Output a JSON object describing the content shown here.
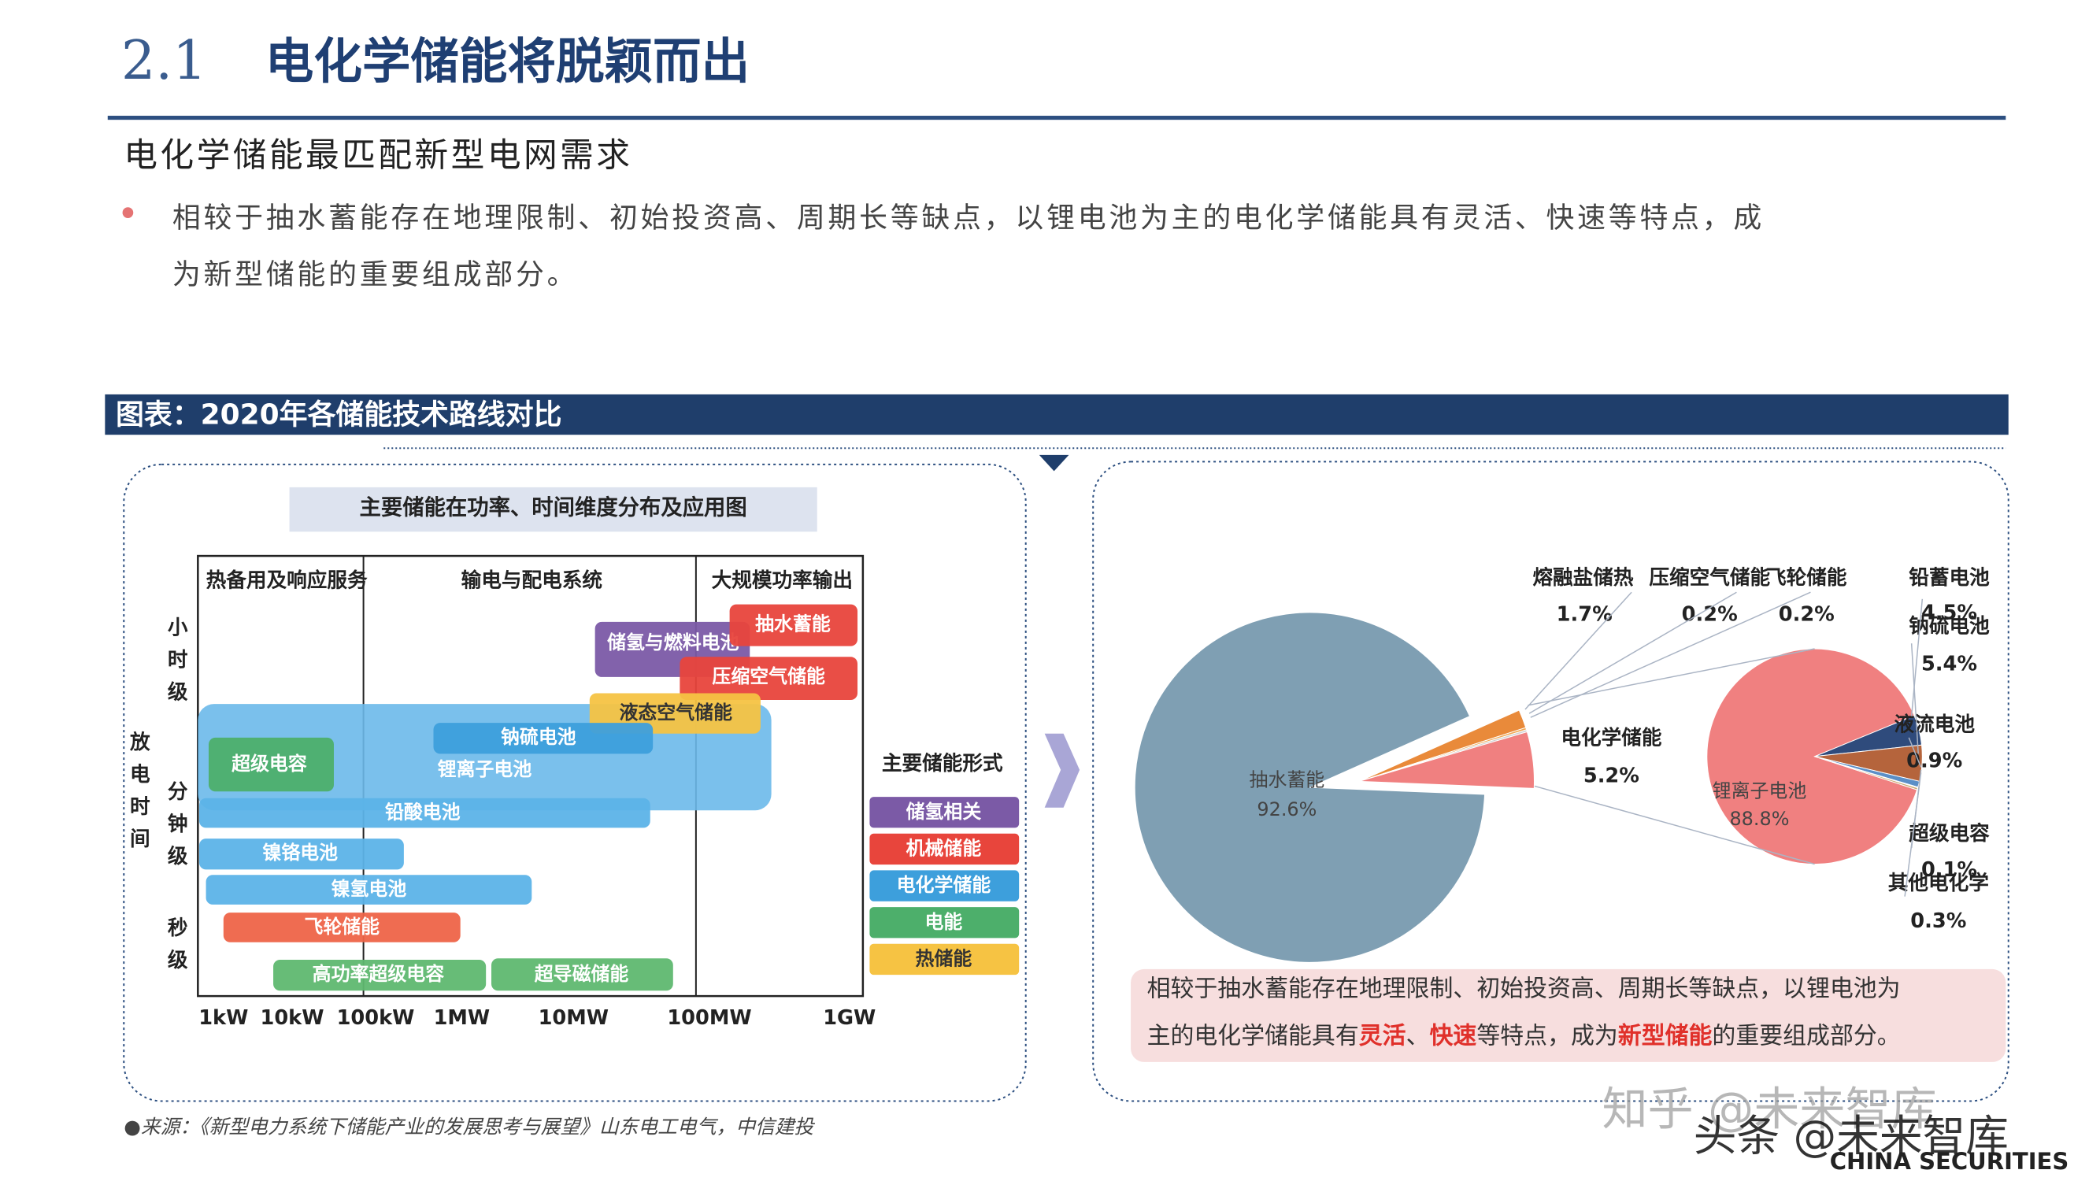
{
  "header": {
    "section": "2.1",
    "title": "电化学储能将脱颖而出"
  },
  "subtitle": "电化学储能最匹配新型电网需求",
  "bullet": [
    "相较于抽水蓄能存在地理限制、初始投资高、周期长等缺点，以锂电池为主的电化学储能具有灵活、快速等特点，成",
    "为新型储能的重要组成部分。"
  ],
  "figure_banner": "图表：2020年各储能技术路线对比",
  "diagram": {
    "title": "主要储能在功率、时间维度分布及应用图",
    "columns": [
      "热备用及响应服务",
      "输电与配电系统",
      "大规模功率输出"
    ],
    "x_labels": [
      "1kW",
      "10kW",
      "100kW",
      "1MW",
      "10MW",
      "100MW",
      "1GW"
    ],
    "y_axis_title": "放电时间",
    "y_labels": [
      "小时级",
      "分钟级",
      "秒级"
    ],
    "items": [
      {
        "label": "储氢与燃料电池",
        "color": "#7b5aa6"
      },
      {
        "label": "抽水蓄能",
        "color": "#e8453c"
      },
      {
        "label": "压缩空气储能",
        "color": "#e8453c"
      },
      {
        "label": "液态空气储能",
        "color": "#f6c343"
      },
      {
        "label": "锂离子电池",
        "color": "#6cb9ea"
      },
      {
        "label": "超级电容",
        "color": "#4daf6b"
      },
      {
        "label": "钠硫电池",
        "color": "#3d9fdc"
      },
      {
        "label": "铅酸电池",
        "color": "#5cb3e8"
      },
      {
        "label": "镍铬电池",
        "color": "#5cb3e8"
      },
      {
        "label": "镍氢电池",
        "color": "#5cb3e8"
      },
      {
        "label": "飞轮储能",
        "color": "#ee6448"
      },
      {
        "label": "高功率超级电容",
        "color": "#5fb870"
      },
      {
        "label": "超导磁储能",
        "color": "#5fb870"
      }
    ],
    "legend_title": "主要储能形式",
    "legend": [
      {
        "label": "储氢相关",
        "color": "#7b5aa6"
      },
      {
        "label": "机械储能",
        "color": "#e8453c"
      },
      {
        "label": "电化学储能",
        "color": "#3d9fdc"
      },
      {
        "label": "电能",
        "color": "#4daf6b"
      },
      {
        "label": "热储能",
        "color": "#f6c343"
      }
    ]
  },
  "chart_data": [
    {
      "type": "pie",
      "categories": [
        "抽水蓄能",
        "熔融盐储热",
        "压缩空气储能",
        "飞轮储能",
        "电化学储能"
      ],
      "values": [
        92.6,
        1.7,
        0.2,
        0.2,
        5.2
      ],
      "value_labels": [
        "92.6%",
        "1.7%",
        "0.2%",
        "0.2%",
        "5.2%"
      ],
      "colors": [
        "#7f9fb3",
        "#e98a3a",
        "#f0a650",
        "#d0d0d0",
        "#f08080"
      ]
    },
    {
      "type": "pie",
      "categories": [
        "锂离子电池",
        "铅蓄电池",
        "钠硫电池",
        "液流电池",
        "超级电容",
        "其他电化学"
      ],
      "values": [
        88.8,
        4.5,
        5.4,
        0.9,
        0.1,
        0.3
      ],
      "value_labels": [
        "88.8%",
        "4.5%",
        "5.4%",
        "0.9%",
        "0.1%",
        "0.3%"
      ],
      "colors": [
        "#f08080",
        "#2f4b7c",
        "#b5643c",
        "#5b8fc7",
        "#7a7a7a",
        "#c9a96e"
      ]
    }
  ],
  "callout": {
    "lines": [
      [
        {
          "text": "相较于抽水蓄能存在地理限制、初始投资高、周期长等缺点，以锂电池为",
          "strong": false
        }
      ],
      [
        {
          "text": "主的电化学储能具有",
          "strong": false
        },
        {
          "text": "灵活",
          "strong": true
        },
        {
          "text": "、",
          "strong": false
        },
        {
          "text": "快速",
          "strong": true
        },
        {
          "text": "等特点，成为",
          "strong": false
        },
        {
          "text": "新型储能",
          "strong": true
        },
        {
          "text": "的重要组成部分。",
          "strong": false
        }
      ]
    ]
  },
  "source": "●来源：《新型电力系统下储能产业的发展思考与展望》山东电工电气，中信建投",
  "watermarks": [
    "知乎 @未来智库",
    "头条 @未来智库"
  ],
  "logo": "CHINA SECURITIES"
}
